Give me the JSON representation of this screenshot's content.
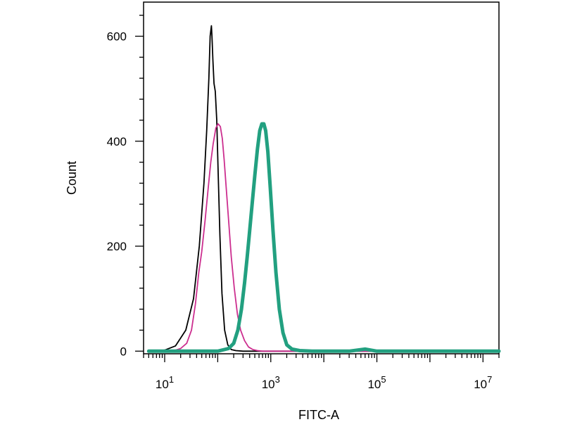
{
  "chart_data": {
    "type": "line",
    "title": "",
    "xlabel": "FITC-A",
    "ylabel": "Count",
    "x_scale": "log",
    "xlim": [
      4,
      20000000
    ],
    "ylim": [
      -5,
      665
    ],
    "x_ticks": [
      {
        "value": 10,
        "base": "10",
        "exp": "1"
      },
      {
        "value": 1000,
        "base": "10",
        "exp": "3"
      },
      {
        "value": 100000,
        "base": "10",
        "exp": "5"
      },
      {
        "value": 10000000,
        "base": "10",
        "exp": "7"
      }
    ],
    "y_ticks": [
      {
        "value": 0,
        "label": "0"
      },
      {
        "value": 200,
        "label": "200"
      },
      {
        "value": 400,
        "label": "400"
      },
      {
        "value": 600,
        "label": "600"
      }
    ],
    "grid": false,
    "legend": "none",
    "series": [
      {
        "color": "#000000",
        "stroke": "thin",
        "x": [
          5,
          10,
          16,
          25,
          35,
          45,
          55,
          62,
          68,
          72,
          76,
          78,
          81,
          85,
          90,
          96,
          102,
          110,
          120,
          135,
          155,
          180,
          220,
          300,
          1000,
          20000000
        ],
        "y": [
          0,
          2,
          10,
          40,
          100,
          200,
          320,
          420,
          520,
          600,
          620,
          600,
          555,
          510,
          495,
          440,
          340,
          220,
          110,
          40,
          12,
          3,
          1,
          0,
          0,
          0
        ]
      },
      {
        "color": "#cc2e8f",
        "stroke": "thin",
        "x": [
          5,
          15,
          20,
          26,
          32,
          38,
          44,
          50,
          58,
          66,
          74,
          82,
          92,
          102,
          112,
          122,
          132,
          145,
          160,
          180,
          205,
          235,
          270,
          320,
          380,
          460,
          560,
          700,
          1000,
          20000000
        ],
        "y": [
          0,
          1,
          5,
          15,
          40,
          90,
          150,
          190,
          250,
          310,
          360,
          395,
          425,
          433,
          428,
          405,
          365,
          310,
          250,
          180,
          120,
          70,
          40,
          20,
          8,
          3,
          1,
          0,
          0,
          0
        ]
      },
      {
        "color": "#22a080",
        "stroke": "thick",
        "x": [
          5,
          100,
          160,
          200,
          240,
          280,
          320,
          360,
          400,
          450,
          500,
          560,
          620,
          680,
          740,
          800,
          880,
          980,
          1100,
          1250,
          1450,
          1700,
          2000,
          2500,
          3500,
          6000,
          30000,
          60000,
          100000,
          20000000
        ],
        "y": [
          0,
          0,
          5,
          15,
          40,
          80,
          130,
          180,
          230,
          285,
          335,
          385,
          420,
          433,
          433,
          420,
          380,
          310,
          230,
          150,
          80,
          35,
          12,
          4,
          1,
          0,
          0,
          4,
          0,
          0
        ]
      }
    ]
  }
}
